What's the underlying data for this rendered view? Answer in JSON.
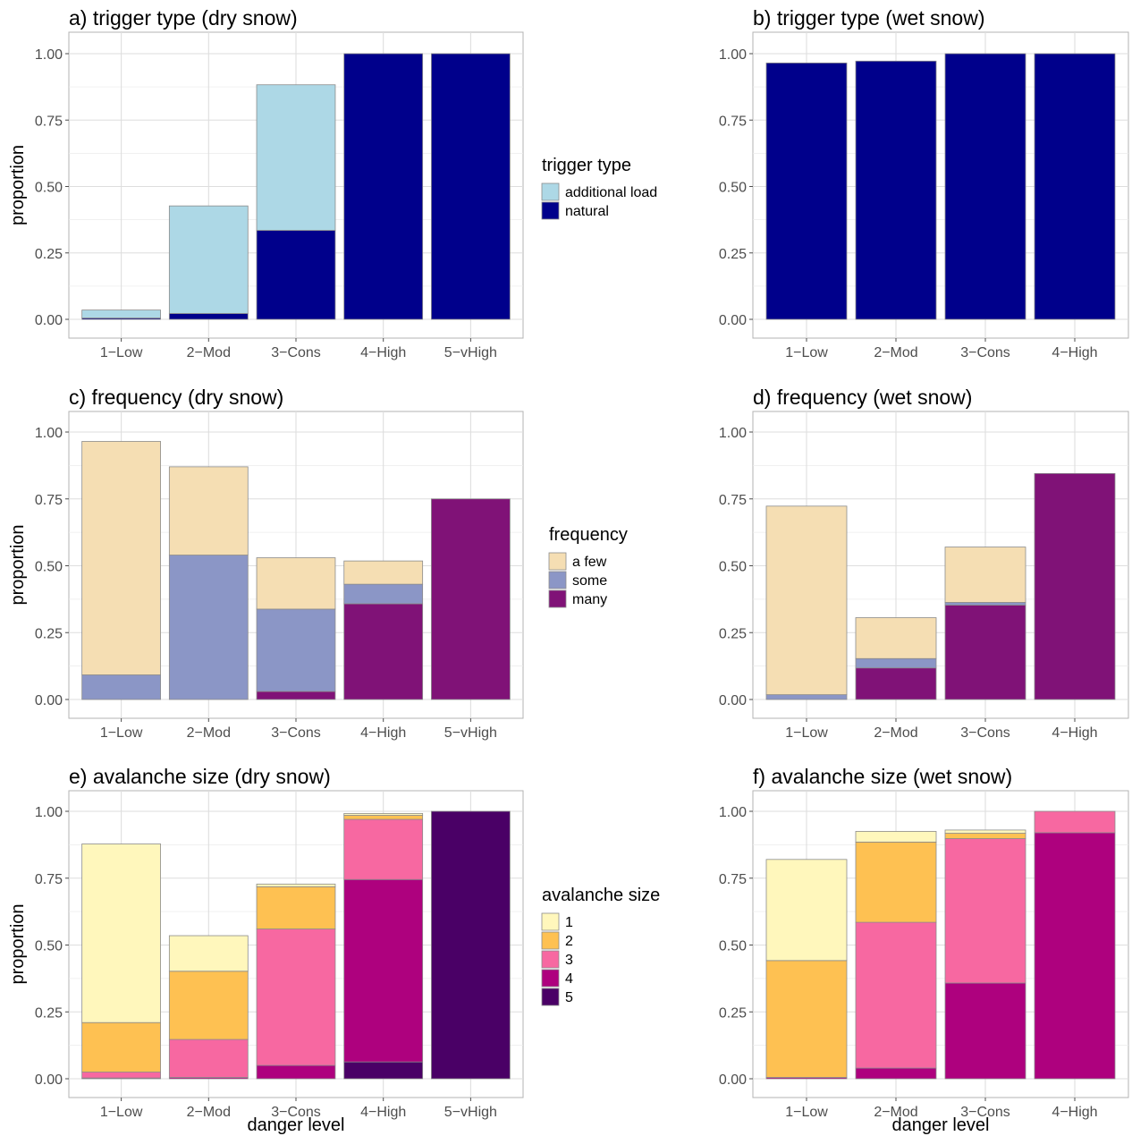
{
  "chart_data": [
    {
      "id": "a",
      "type": "bar",
      "stacked": true,
      "title": "a) trigger type (dry snow)",
      "xlabel": "",
      "ylabel": "proportion",
      "categories": [
        "1−Low",
        "2−Mod",
        "3−Cons",
        "4−High",
        "5−vHigh"
      ],
      "yticks": [
        "0.00",
        "0.25",
        "0.50",
        "0.75",
        "1.00"
      ],
      "ylim": [
        0,
        1
      ],
      "grid": true,
      "legend": {
        "title": "trigger type",
        "position": "right"
      },
      "series": [
        {
          "name": "natural",
          "color": "#00008B",
          "values": [
            0.005,
            0.022,
            0.335,
            1.0,
            1.0
          ]
        },
        {
          "name": "additional load",
          "color": "#ADD8E6",
          "values": [
            0.03,
            0.405,
            0.548,
            0,
            0
          ]
        }
      ]
    },
    {
      "id": "b",
      "type": "bar",
      "stacked": true,
      "title": "b) trigger type (wet snow)",
      "xlabel": "",
      "ylabel": "",
      "categories": [
        "1−Low",
        "2−Mod",
        "3−Cons",
        "4−High"
      ],
      "yticks": [
        "0.00",
        "0.25",
        "0.50",
        "0.75",
        "1.00"
      ],
      "ylim": [
        0,
        1
      ],
      "grid": true,
      "series": [
        {
          "name": "natural",
          "color": "#00008B",
          "values": [
            0.965,
            0.972,
            1.0,
            1.0
          ]
        }
      ]
    },
    {
      "id": "c",
      "type": "bar",
      "stacked": true,
      "title": "c) frequency (dry snow)",
      "xlabel": "",
      "ylabel": "proportion",
      "categories": [
        "1−Low",
        "2−Mod",
        "3−Cons",
        "4−High",
        "5−vHigh"
      ],
      "yticks": [
        "0.00",
        "0.25",
        "0.50",
        "0.75",
        "1.00"
      ],
      "ylim": [
        0,
        1
      ],
      "grid": true,
      "legend": {
        "title": "frequency",
        "position": "right"
      },
      "series": [
        {
          "name": "many",
          "color": "#801277",
          "values": [
            0,
            0,
            0.03,
            0.358,
            0.75
          ]
        },
        {
          "name": "some",
          "color": "#8B96C6",
          "values": [
            0.092,
            0.54,
            0.308,
            0.073,
            0
          ]
        },
        {
          "name": "a few",
          "color": "#F5DEB3",
          "values": [
            0.873,
            0.33,
            0.192,
            0.087,
            0
          ]
        }
      ]
    },
    {
      "id": "d",
      "type": "bar",
      "stacked": true,
      "title": "d) frequency (wet snow)",
      "xlabel": "",
      "ylabel": "",
      "categories": [
        "1−Low",
        "2−Mod",
        "3−Cons",
        "4−High"
      ],
      "yticks": [
        "0.00",
        "0.25",
        "0.50",
        "0.75",
        "1.00"
      ],
      "ylim": [
        0,
        1
      ],
      "grid": true,
      "series": [
        {
          "name": "many",
          "color": "#801277",
          "values": [
            0,
            0.118,
            0.353,
            0.845
          ]
        },
        {
          "name": "some",
          "color": "#8B96C6",
          "values": [
            0.018,
            0.035,
            0.01,
            0
          ]
        },
        {
          "name": "a few",
          "color": "#F5DEB3",
          "values": [
            0.705,
            0.153,
            0.207,
            0
          ]
        }
      ]
    },
    {
      "id": "e",
      "type": "bar",
      "stacked": true,
      "title": "e) avalanche size (dry snow)",
      "xlabel": "danger level",
      "ylabel": "proportion",
      "categories": [
        "1−Low",
        "2−Mod",
        "3−Cons",
        "4−High",
        "5−vHigh"
      ],
      "yticks": [
        "0.00",
        "0.25",
        "0.50",
        "0.75",
        "1.00"
      ],
      "ylim": [
        0,
        1
      ],
      "grid": true,
      "legend": {
        "title": "avalanche size",
        "position": "right"
      },
      "series": [
        {
          "name": "5",
          "color": "#4A0066",
          "values": [
            0,
            0,
            0,
            0.063,
            1.0
          ]
        },
        {
          "name": "4",
          "color": "#AE017E",
          "values": [
            0.003,
            0.005,
            0.05,
            0.682,
            0
          ]
        },
        {
          "name": "3",
          "color": "#F768A1",
          "values": [
            0.022,
            0.142,
            0.51,
            0.225,
            0
          ]
        },
        {
          "name": "2",
          "color": "#FEC152",
          "values": [
            0.185,
            0.255,
            0.158,
            0.015,
            0
          ]
        },
        {
          "name": "1",
          "color": "#FFF7BC",
          "values": [
            0.668,
            0.133,
            0.01,
            0.007,
            0
          ]
        }
      ]
    },
    {
      "id": "f",
      "type": "bar",
      "stacked": true,
      "title": "f) avalanche size (wet snow)",
      "xlabel": "danger level",
      "ylabel": "",
      "categories": [
        "1−Low",
        "2−Mod",
        "3−Cons",
        "4−High"
      ],
      "yticks": [
        "0.00",
        "0.25",
        "0.50",
        "0.75",
        "1.00"
      ],
      "ylim": [
        0,
        1
      ],
      "grid": true,
      "series": [
        {
          "name": "5",
          "color": "#4A0066",
          "values": [
            0,
            0,
            0,
            0
          ]
        },
        {
          "name": "4",
          "color": "#AE017E",
          "values": [
            0.005,
            0.04,
            0.358,
            0.92
          ]
        },
        {
          "name": "3",
          "color": "#F768A1",
          "values": [
            0,
            0.545,
            0.54,
            0.08
          ]
        },
        {
          "name": "2",
          "color": "#FEC152",
          "values": [
            0.437,
            0.3,
            0.02,
            0
          ]
        },
        {
          "name": "1",
          "color": "#FFF7BC",
          "values": [
            0.378,
            0.04,
            0.012,
            0
          ]
        }
      ]
    }
  ]
}
